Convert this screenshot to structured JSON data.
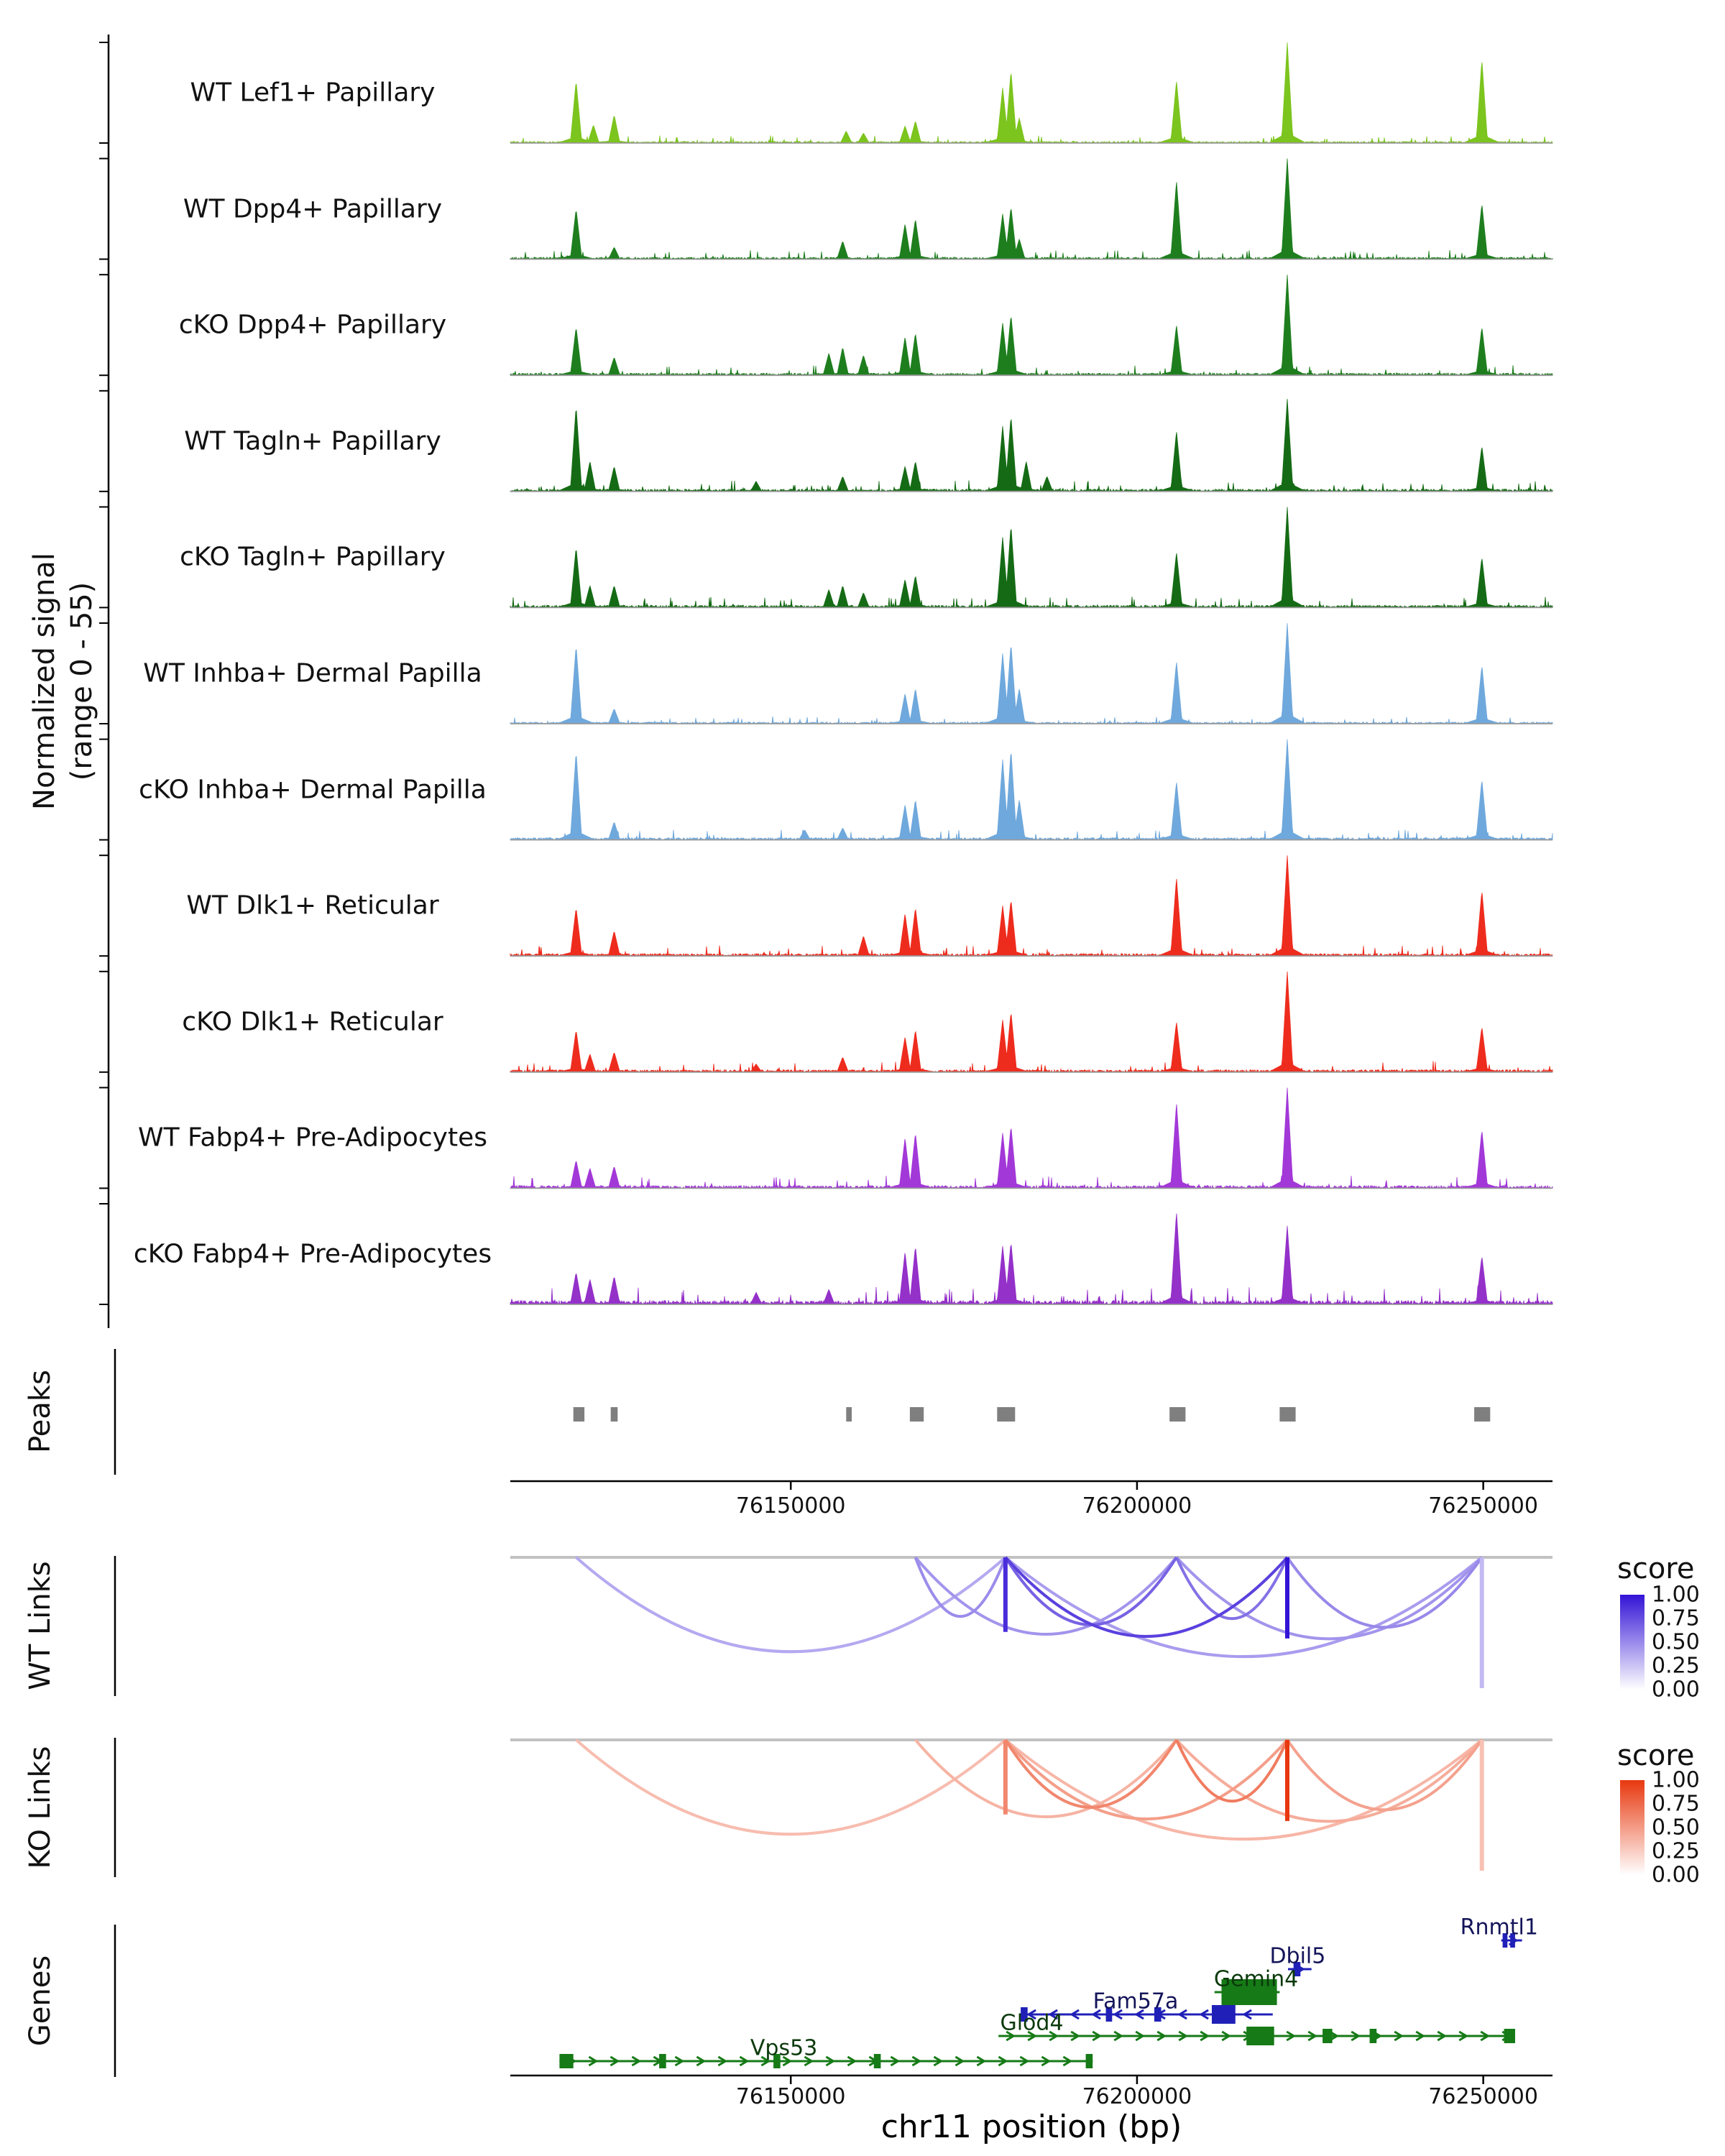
{
  "figure": {
    "signal_axis_label": [
      "Normalized signal",
      "(range 0 - 55)"
    ],
    "sections": {
      "peaks": "Peaks",
      "wt_links": "WT Links",
      "ko_links": "KO Links",
      "genes": "Genes"
    },
    "legend": {
      "title": "score",
      "ticks": [
        "1.00",
        "0.75",
        "0.50",
        "0.25",
        "0.00"
      ]
    },
    "xaxis_title": "chr11 position (bp)"
  },
  "chart_data": {
    "type": "area",
    "chrom": "chr11",
    "xlabel": "chr11 position (bp)",
    "ylabel": "Normalized signal (range 0 - 55)",
    "signal_range": [
      0,
      55
    ],
    "x_range": [
      76109500,
      76260000
    ],
    "x_ticks": [
      76150000,
      76200000,
      76250000
    ],
    "x_tick_labels": [
      "76150000",
      "76200000",
      "76250000"
    ],
    "tracks": [
      {
        "name": "WT Lef1+ Papillary",
        "color": "#7CC41E",
        "noise": 0.015,
        "peaks": [
          [
            76119000,
            0.62
          ],
          [
            76121500,
            0.18
          ],
          [
            76124500,
            0.28
          ],
          [
            76158000,
            0.12
          ],
          [
            76160500,
            0.1
          ],
          [
            76166500,
            0.17
          ],
          [
            76168000,
            0.22
          ],
          [
            76180600,
            0.55
          ],
          [
            76181800,
            0.72
          ],
          [
            76183000,
            0.25
          ],
          [
            76205700,
            0.62
          ],
          [
            76221700,
            1.0
          ],
          [
            76249800,
            0.83
          ]
        ]
      },
      {
        "name": "WT Dpp4+ Papillary",
        "color": "#1E7E1E",
        "noise": 0.018,
        "peaks": [
          [
            76119000,
            0.5
          ],
          [
            76124500,
            0.12
          ],
          [
            76157500,
            0.18
          ],
          [
            76166500,
            0.35
          ],
          [
            76168000,
            0.4
          ],
          [
            76180600,
            0.45
          ],
          [
            76181800,
            0.52
          ],
          [
            76183000,
            0.2
          ],
          [
            76205700,
            0.78
          ],
          [
            76221700,
            1.0
          ],
          [
            76249800,
            0.55
          ]
        ]
      },
      {
        "name": "cKO Dpp4+ Papillary",
        "color": "#1E7E1E",
        "noise": 0.02,
        "peaks": [
          [
            76119000,
            0.48
          ],
          [
            76124500,
            0.18
          ],
          [
            76155500,
            0.22
          ],
          [
            76157500,
            0.28
          ],
          [
            76160500,
            0.2
          ],
          [
            76166500,
            0.38
          ],
          [
            76168000,
            0.42
          ],
          [
            76180600,
            0.52
          ],
          [
            76181800,
            0.6
          ],
          [
            76205700,
            0.5
          ],
          [
            76221700,
            1.0
          ],
          [
            76249800,
            0.48
          ]
        ]
      },
      {
        "name": "WT Tagln+ Papillary",
        "color": "#156B15",
        "noise": 0.022,
        "peaks": [
          [
            76119000,
            0.85
          ],
          [
            76121000,
            0.3
          ],
          [
            76124500,
            0.25
          ],
          [
            76145000,
            0.1
          ],
          [
            76157500,
            0.15
          ],
          [
            76166500,
            0.25
          ],
          [
            76168000,
            0.3
          ],
          [
            76180600,
            0.65
          ],
          [
            76181800,
            0.75
          ],
          [
            76184000,
            0.3
          ],
          [
            76187000,
            0.15
          ],
          [
            76205700,
            0.6
          ],
          [
            76221700,
            0.92
          ],
          [
            76249800,
            0.45
          ]
        ]
      },
      {
        "name": "cKO Tagln+ Papillary",
        "color": "#156B15",
        "noise": 0.022,
        "peaks": [
          [
            76119000,
            0.6
          ],
          [
            76121000,
            0.22
          ],
          [
            76124500,
            0.22
          ],
          [
            76155500,
            0.18
          ],
          [
            76157500,
            0.22
          ],
          [
            76160500,
            0.15
          ],
          [
            76166500,
            0.28
          ],
          [
            76168000,
            0.32
          ],
          [
            76180600,
            0.7
          ],
          [
            76181800,
            0.82
          ],
          [
            76205700,
            0.55
          ],
          [
            76221700,
            1.0
          ],
          [
            76249800,
            0.5
          ]
        ]
      },
      {
        "name": "WT Inhba+ Dermal Papilla",
        "color": "#6FA8DC",
        "noise": 0.015,
        "peaks": [
          [
            76119000,
            0.78
          ],
          [
            76124500,
            0.15
          ],
          [
            76166500,
            0.3
          ],
          [
            76168000,
            0.35
          ],
          [
            76180600,
            0.7
          ],
          [
            76181800,
            0.8
          ],
          [
            76183000,
            0.35
          ],
          [
            76205700,
            0.62
          ],
          [
            76221700,
            1.0
          ],
          [
            76249800,
            0.58
          ]
        ]
      },
      {
        "name": "cKO Inhba+ Dermal Papilla",
        "color": "#6FA8DC",
        "noise": 0.02,
        "peaks": [
          [
            76119000,
            0.88
          ],
          [
            76124500,
            0.18
          ],
          [
            76152000,
            0.1
          ],
          [
            76157500,
            0.12
          ],
          [
            76166500,
            0.35
          ],
          [
            76168000,
            0.4
          ],
          [
            76180600,
            0.8
          ],
          [
            76181800,
            0.9
          ],
          [
            76183000,
            0.4
          ],
          [
            76205700,
            0.58
          ],
          [
            76221700,
            1.0
          ],
          [
            76249800,
            0.6
          ]
        ]
      },
      {
        "name": "WT Dlk1+ Reticular",
        "color": "#EE2C1E",
        "noise": 0.022,
        "peaks": [
          [
            76119000,
            0.48
          ],
          [
            76124500,
            0.25
          ],
          [
            76160500,
            0.2
          ],
          [
            76166500,
            0.42
          ],
          [
            76168000,
            0.48
          ],
          [
            76180600,
            0.5
          ],
          [
            76181800,
            0.56
          ],
          [
            76205700,
            0.78
          ],
          [
            76221700,
            1.0
          ],
          [
            76249800,
            0.65
          ]
        ]
      },
      {
        "name": "cKO Dlk1+ Reticular",
        "color": "#EE2C1E",
        "noise": 0.022,
        "peaks": [
          [
            76119000,
            0.42
          ],
          [
            76121000,
            0.18
          ],
          [
            76124500,
            0.2
          ],
          [
            76145000,
            0.08
          ],
          [
            76157500,
            0.15
          ],
          [
            76166500,
            0.35
          ],
          [
            76168000,
            0.42
          ],
          [
            76180600,
            0.52
          ],
          [
            76181800,
            0.6
          ],
          [
            76205700,
            0.5
          ],
          [
            76221700,
            1.0
          ],
          [
            76249800,
            0.45
          ]
        ]
      },
      {
        "name": "WT Fabp4+ Pre-Adipocytes",
        "color": "#A238D8",
        "noise": 0.025,
        "peaks": [
          [
            76119000,
            0.28
          ],
          [
            76121000,
            0.2
          ],
          [
            76124500,
            0.22
          ],
          [
            76166500,
            0.5
          ],
          [
            76168000,
            0.55
          ],
          [
            76180600,
            0.55
          ],
          [
            76181800,
            0.62
          ],
          [
            76205700,
            0.85
          ],
          [
            76221700,
            1.0
          ],
          [
            76249800,
            0.58
          ]
        ]
      },
      {
        "name": "cKO Fabp4+ Pre-Adipocytes",
        "color": "#9431C9",
        "noise": 0.035,
        "peaks": [
          [
            76119000,
            0.32
          ],
          [
            76121000,
            0.25
          ],
          [
            76124500,
            0.28
          ],
          [
            76145000,
            0.12
          ],
          [
            76155500,
            0.15
          ],
          [
            76166500,
            0.52
          ],
          [
            76168000,
            0.58
          ],
          [
            76180600,
            0.58
          ],
          [
            76181800,
            0.62
          ],
          [
            76205700,
            0.92
          ],
          [
            76221700,
            0.78
          ],
          [
            76249800,
            0.48
          ]
        ]
      }
    ],
    "peak_regions": [
      [
        76118600,
        76120200
      ],
      [
        76124000,
        76125000
      ],
      [
        76158000,
        76158800
      ],
      [
        76167200,
        76169200
      ],
      [
        76179800,
        76182400
      ],
      [
        76204700,
        76207000
      ],
      [
        76220600,
        76222900
      ],
      [
        76248700,
        76251000
      ]
    ],
    "links": {
      "wt": {
        "high_color": "#3314D6",
        "arcs": [
          [
            76119000,
            76181000,
            0.28
          ],
          [
            76168000,
            76181000,
            0.42
          ],
          [
            76168000,
            76205700,
            0.38
          ],
          [
            76181000,
            76205700,
            0.62
          ],
          [
            76181000,
            76221700,
            0.78
          ],
          [
            76181000,
            76249800,
            0.34
          ],
          [
            76205700,
            76221700,
            0.55
          ],
          [
            76205700,
            76249800,
            0.38
          ],
          [
            76221700,
            76249800,
            0.44
          ]
        ],
        "anchors": [
          [
            76181000,
            0.88,
            0.57
          ],
          [
            76221700,
            1.0,
            0.62
          ],
          [
            76249800,
            0.2,
            1.0
          ]
        ]
      },
      "ko": {
        "high_color": "#E8380F",
        "arcs": [
          [
            76119000,
            76181000,
            0.24
          ],
          [
            76168000,
            76205700,
            0.3
          ],
          [
            76181000,
            76205700,
            0.55
          ],
          [
            76181000,
            76221700,
            0.42
          ],
          [
            76205700,
            76221700,
            0.62
          ],
          [
            76205700,
            76249800,
            0.34
          ],
          [
            76221700,
            76249800,
            0.4
          ],
          [
            76181000,
            76249800,
            0.28
          ]
        ],
        "anchors": [
          [
            76181000,
            0.55,
            0.57
          ],
          [
            76221700,
            1.0,
            0.62
          ],
          [
            76249800,
            0.22,
            1.0
          ]
        ]
      },
      "score_scale": {
        "min": 0.0,
        "max": 1.0
      }
    },
    "genes": [
      {
        "name": "Rnmtl1",
        "start": 76252600,
        "end": 76255600,
        "strand": "-",
        "color": "#2020B8",
        "label_color": "#14145A",
        "label_pos": 76252300,
        "row": 0,
        "exons": [
          [
            76252800,
            76253500
          ],
          [
            76253900,
            76254600
          ]
        ]
      },
      {
        "name": "Dbil5",
        "start": 76221800,
        "end": 76225200,
        "strand": "-",
        "color": "#2020B8",
        "label_color": "#14145A",
        "label_pos": 76223200,
        "row": 1,
        "exons": [
          [
            76222600,
            76223600
          ]
        ]
      },
      {
        "name": "Gemin4",
        "start": 76211200,
        "end": 76220600,
        "strand": "-",
        "color": "#167A16",
        "label_color": "#0C3A0C",
        "label_pos": 76217200,
        "row": 2,
        "exons": [
          [
            76212200,
            76220200
          ]
        ]
      },
      {
        "name": "Fam57a",
        "start": 76183200,
        "end": 76219600,
        "strand": "+",
        "color": "#2020B8",
        "label_color": "#14145A",
        "label_pos": 76199800,
        "row": 3,
        "exons": [
          [
            76183200,
            76184200
          ],
          [
            76195500,
            76196400
          ],
          [
            76202500,
            76203500
          ],
          [
            76210800,
            76214200
          ]
        ]
      },
      {
        "name": "Glod4",
        "start": 76180000,
        "end": 76254600,
        "strand": "-",
        "color": "#167A16",
        "label_color": "#0C3A0C",
        "label_pos": 76184800,
        "row": 4,
        "exons": [
          [
            76215800,
            76219800
          ],
          [
            76226800,
            76228200
          ],
          [
            76233600,
            76234600
          ],
          [
            76253000,
            76254600
          ]
        ]
      },
      {
        "name": "Vps53",
        "start": 76116600,
        "end": 76193600,
        "strand": "-",
        "color": "#167A16",
        "label_color": "#0C3A0C",
        "label_pos": 76149000,
        "row": 5,
        "exons": [
          [
            76116600,
            76118600
          ],
          [
            76131000,
            76132000
          ],
          [
            76147500,
            76148500
          ],
          [
            76162000,
            76163000
          ],
          [
            76192600,
            76193600
          ]
        ]
      }
    ]
  }
}
